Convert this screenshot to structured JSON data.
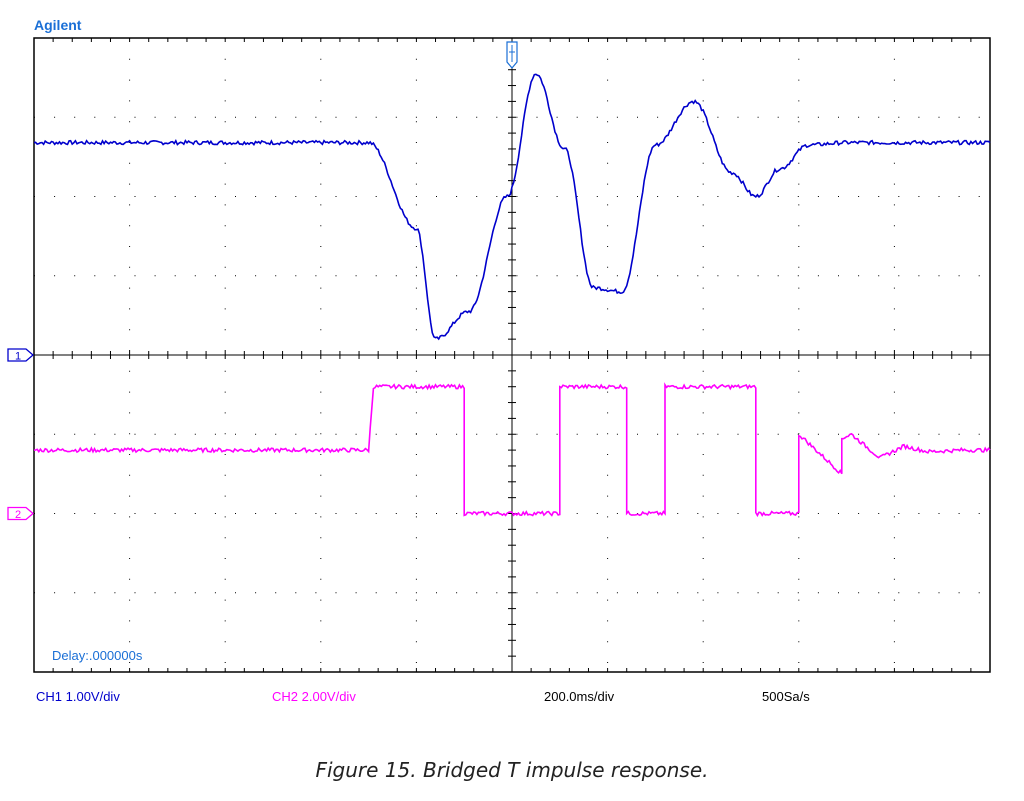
{
  "header": {
    "brand": "Agilent"
  },
  "readout": {
    "delay": "Delay:.000000s"
  },
  "markers": {
    "ch1": "1",
    "ch2": "2"
  },
  "footer": {
    "ch1_scale": "CH1 1.00V/div",
    "ch2_scale": "CH2 2.00V/div",
    "timebase": "200.0ms/div",
    "sample_rate": "500Sa/s"
  },
  "caption": "Figure 15. Bridged T impulse response.",
  "colors": {
    "brand": "#1a6fd6",
    "ch1": "#0000cc",
    "ch2": "#ff00ff",
    "grid": "#000000"
  },
  "chart_data": {
    "type": "line",
    "grid": true,
    "x_unit": "div",
    "y_unit": "div",
    "xlim": [
      0,
      10
    ],
    "ylim": [
      -4,
      4
    ],
    "series": [
      {
        "name": "CH1",
        "x": [
          0,
          3.5,
          4.0,
          4.2,
          4.55,
          4.95,
          5.25,
          5.55,
          5.85,
          6.15,
          6.5,
          6.9,
          7.3,
          7.55,
          7.8,
          8.1,
          8.5,
          10
        ],
        "y": [
          2.68,
          2.68,
          1.6,
          0.2,
          0.55,
          2.0,
          3.55,
          2.6,
          0.85,
          0.8,
          2.65,
          3.2,
          2.3,
          2.0,
          2.35,
          2.65,
          2.68,
          2.68
        ]
      },
      {
        "name": "CH2",
        "x": [
          0,
          3.5,
          3.55,
          4.5,
          4.5,
          5.5,
          5.5,
          6.2,
          6.2,
          6.6,
          6.6,
          7.55,
          7.55,
          8.0,
          8.0,
          8.45,
          8.45,
          8.55,
          8.85,
          9.1,
          9.35,
          9.7,
          10
        ],
        "y": [
          -1.2,
          -1.2,
          -0.4,
          -0.4,
          -2.0,
          -2.0,
          -0.4,
          -0.4,
          -2.0,
          -2.0,
          -0.4,
          -0.4,
          -2.0,
          -2.0,
          -1.0,
          -1.5,
          -1.05,
          -1.0,
          -1.3,
          -1.15,
          -1.22,
          -1.2,
          -1.2
        ]
      }
    ]
  }
}
